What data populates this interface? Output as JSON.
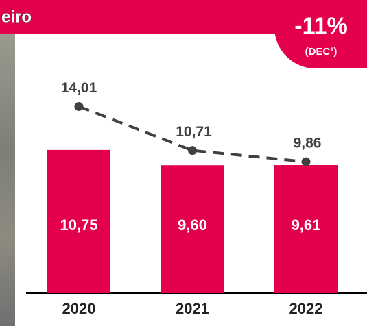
{
  "banner": "eiro",
  "badge": {
    "headline": "-11%",
    "note": "(DEC¹)"
  },
  "chart_data": {
    "type": "combo",
    "categories": [
      "2020",
      "2021",
      "2022"
    ],
    "ylim": [
      0,
      22
    ],
    "series": [
      {
        "type": "bar",
        "color": "#e5004c",
        "values": [
          10.75,
          9.6,
          9.61
        ],
        "value_labels": [
          "10,75",
          "9,60",
          "9,61"
        ]
      },
      {
        "type": "line",
        "color": "#404040",
        "dashed": true,
        "values": [
          14.01,
          10.71,
          9.86
        ],
        "value_labels": [
          "14,01",
          "10,71",
          "9,86"
        ]
      }
    ]
  }
}
